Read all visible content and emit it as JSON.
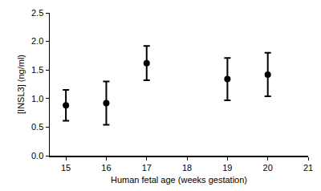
{
  "chart_data": {
    "type": "scatter",
    "x_label": "Human fetal age (weeks gestation)",
    "y_label": "[INSL3] (ng/ml)",
    "x": [
      15,
      16,
      17,
      19,
      20
    ],
    "values": [
      0.88,
      0.92,
      1.62,
      1.34,
      1.42
    ],
    "errors": [
      0.27,
      0.38,
      0.3,
      0.37,
      0.38
    ],
    "color": "#000000",
    "marker": "circle",
    "xlim": [
      14.6,
      21
    ],
    "xticks": [
      15,
      16,
      17,
      18,
      19,
      20,
      21
    ],
    "ylim": [
      0,
      2.5
    ],
    "yticks": [
      {
        "value": 0,
        "label": "0.0"
      },
      {
        "value": 0.5,
        "label": "0.5"
      },
      {
        "value": 1,
        "label": "1.0"
      },
      {
        "value": 1.5,
        "label": "1.5"
      },
      {
        "value": 2,
        "label": "2.0"
      },
      {
        "value": 2.5,
        "label": "2.5"
      }
    ],
    "grid": false
  }
}
